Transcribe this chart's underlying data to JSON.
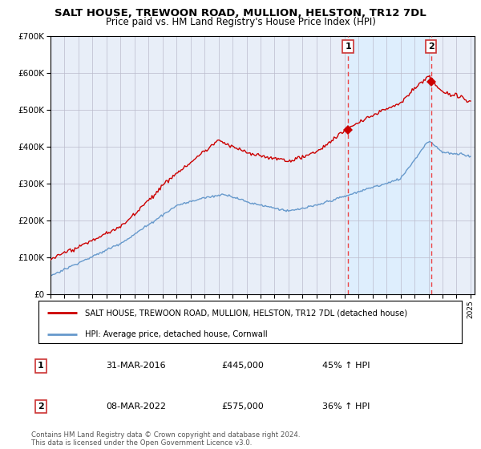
{
  "title": "SALT HOUSE, TREWOON ROAD, MULLION, HELSTON, TR12 7DL",
  "subtitle": "Price paid vs. HM Land Registry's House Price Index (HPI)",
  "legend_house": "SALT HOUSE, TREWOON ROAD, MULLION, HELSTON, TR12 7DL (detached house)",
  "legend_hpi": "HPI: Average price, detached house, Cornwall",
  "footnote": "Contains HM Land Registry data © Crown copyright and database right 2024.\nThis data is licensed under the Open Government Licence v3.0.",
  "transaction1": {
    "num": "1",
    "date": "31-MAR-2016",
    "price": "£445,000",
    "pct": "45% ↑ HPI"
  },
  "transaction2": {
    "num": "2",
    "date": "08-MAR-2022",
    "price": "£575,000",
    "pct": "36% ↑ HPI"
  },
  "vline1_x": 2016.25,
  "vline2_x": 2022.18,
  "point1_x": 2016.25,
  "point1_y": 445000,
  "point2_x": 2022.18,
  "point2_y": 575000,
  "house_color": "#cc0000",
  "hpi_color": "#6699cc",
  "vline_color": "#ee4444",
  "shade_color": "#ddeeff",
  "background_color": "#e8eef8",
  "ylim": [
    0,
    700000
  ],
  "xlim": [
    1995.0,
    2025.3
  ],
  "title_fontsize": 9.5,
  "subtitle_fontsize": 8.5
}
